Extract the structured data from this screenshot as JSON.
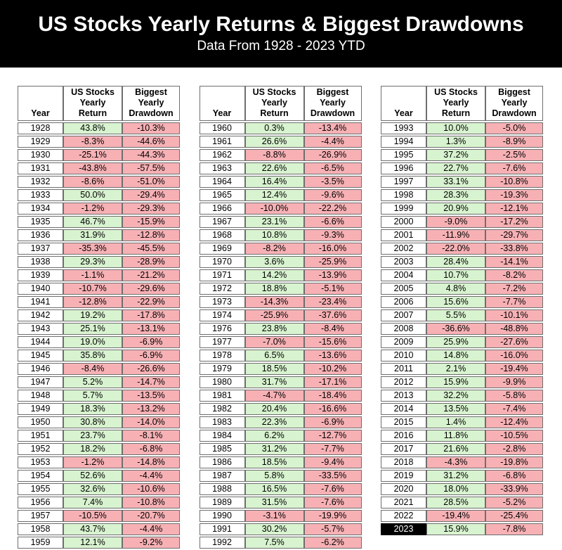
{
  "header": {
    "title": "US Stocks Yearly Returns & Biggest Drawdowns",
    "subtitle": "Data From 1928 - 2023 YTD"
  },
  "colors": {
    "banner_bg": "#000000",
    "banner_text": "#ffffff",
    "positive_cell": "#d8f3cf",
    "negative_cell": "#f7b1b5",
    "highlight_year_bg": "#000000",
    "highlight_year_text": "#ffffff",
    "grid_line": "#6e6e6e"
  },
  "chart_data": {
    "type": "table",
    "title": "US Stocks Yearly Returns & Biggest Drawdowns",
    "subtitle": "Data From 1928 - 2023 YTD",
    "columns": [
      "Year",
      "US Stocks\nYearly\nReturn",
      "Biggest\nYearly\nDrawdown"
    ],
    "highlight_years": [
      "2023"
    ],
    "tables": [
      {
        "rows": [
          [
            "1928",
            "43.8%",
            "-10.3%"
          ],
          [
            "1929",
            "-8.3%",
            "-44.6%"
          ],
          [
            "1930",
            "-25.1%",
            "-44.3%"
          ],
          [
            "1931",
            "-43.8%",
            "-57.5%"
          ],
          [
            "1932",
            "-8.6%",
            "-51.0%"
          ],
          [
            "1933",
            "50.0%",
            "-29.4%"
          ],
          [
            "1934",
            "-1.2%",
            "-29.3%"
          ],
          [
            "1935",
            "46.7%",
            "-15.9%"
          ],
          [
            "1936",
            "31.9%",
            "-12.8%"
          ],
          [
            "1937",
            "-35.3%",
            "-45.5%"
          ],
          [
            "1938",
            "29.3%",
            "-28.9%"
          ],
          [
            "1939",
            "-1.1%",
            "-21.2%"
          ],
          [
            "1940",
            "-10.7%",
            "-29.6%"
          ],
          [
            "1941",
            "-12.8%",
            "-22.9%"
          ],
          [
            "1942",
            "19.2%",
            "-17.8%"
          ],
          [
            "1943",
            "25.1%",
            "-13.1%"
          ],
          [
            "1944",
            "19.0%",
            "-6.9%"
          ],
          [
            "1945",
            "35.8%",
            "-6.9%"
          ],
          [
            "1946",
            "-8.4%",
            "-26.6%"
          ],
          [
            "1947",
            "5.2%",
            "-14.7%"
          ],
          [
            "1948",
            "5.7%",
            "-13.5%"
          ],
          [
            "1949",
            "18.3%",
            "-13.2%"
          ],
          [
            "1950",
            "30.8%",
            "-14.0%"
          ],
          [
            "1951",
            "23.7%",
            "-8.1%"
          ],
          [
            "1952",
            "18.2%",
            "-6.8%"
          ],
          [
            "1953",
            "-1.2%",
            "-14.8%"
          ],
          [
            "1954",
            "52.6%",
            "-4.4%"
          ],
          [
            "1955",
            "32.6%",
            "-10.6%"
          ],
          [
            "1956",
            "7.4%",
            "-10.8%"
          ],
          [
            "1957",
            "-10.5%",
            "-20.7%"
          ],
          [
            "1958",
            "43.7%",
            "-4.4%"
          ],
          [
            "1959",
            "12.1%",
            "-9.2%"
          ]
        ]
      },
      {
        "rows": [
          [
            "1960",
            "0.3%",
            "-13.4%"
          ],
          [
            "1961",
            "26.6%",
            "-4.4%"
          ],
          [
            "1962",
            "-8.8%",
            "-26.9%"
          ],
          [
            "1963",
            "22.6%",
            "-6.5%"
          ],
          [
            "1964",
            "16.4%",
            "-3.5%"
          ],
          [
            "1965",
            "12.4%",
            "-9.6%"
          ],
          [
            "1966",
            "-10.0%",
            "-22.2%"
          ],
          [
            "1967",
            "23.1%",
            "-6.6%"
          ],
          [
            "1968",
            "10.8%",
            "-9.3%"
          ],
          [
            "1969",
            "-8.2%",
            "-16.0%"
          ],
          [
            "1970",
            "3.6%",
            "-25.9%"
          ],
          [
            "1971",
            "14.2%",
            "-13.9%"
          ],
          [
            "1972",
            "18.8%",
            "-5.1%"
          ],
          [
            "1973",
            "-14.3%",
            "-23.4%"
          ],
          [
            "1974",
            "-25.9%",
            "-37.6%"
          ],
          [
            "1976",
            "23.8%",
            "-8.4%"
          ],
          [
            "1977",
            "-7.0%",
            "-15.6%"
          ],
          [
            "1978",
            "6.5%",
            "-13.6%"
          ],
          [
            "1979",
            "18.5%",
            "-10.2%"
          ],
          [
            "1980",
            "31.7%",
            "-17.1%"
          ],
          [
            "1981",
            "-4.7%",
            "-18.4%"
          ],
          [
            "1982",
            "20.4%",
            "-16.6%"
          ],
          [
            "1983",
            "22.3%",
            "-6.9%"
          ],
          [
            "1984",
            "6.2%",
            "-12.7%"
          ],
          [
            "1985",
            "31.2%",
            "-7.7%"
          ],
          [
            "1986",
            "18.5%",
            "-9.4%"
          ],
          [
            "1987",
            "5.8%",
            "-33.5%"
          ],
          [
            "1988",
            "16.5%",
            "-7.6%"
          ],
          [
            "1989",
            "31.5%",
            "-7.6%"
          ],
          [
            "1990",
            "-3.1%",
            "-19.9%"
          ],
          [
            "1991",
            "30.2%",
            "-5.7%"
          ],
          [
            "1992",
            "7.5%",
            "-6.2%"
          ]
        ]
      },
      {
        "rows": [
          [
            "1993",
            "10.0%",
            "-5.0%"
          ],
          [
            "1994",
            "1.3%",
            "-8.9%"
          ],
          [
            "1995",
            "37.2%",
            "-2.5%"
          ],
          [
            "1996",
            "22.7%",
            "-7.6%"
          ],
          [
            "1997",
            "33.1%",
            "-10.8%"
          ],
          [
            "1998",
            "28.3%",
            "-19.3%"
          ],
          [
            "1999",
            "20.9%",
            "-12.1%"
          ],
          [
            "2000",
            "-9.0%",
            "-17.2%"
          ],
          [
            "2001",
            "-11.9%",
            "-29.7%"
          ],
          [
            "2002",
            "-22.0%",
            "-33.8%"
          ],
          [
            "2003",
            "28.4%",
            "-14.1%"
          ],
          [
            "2004",
            "10.7%",
            "-8.2%"
          ],
          [
            "2005",
            "4.8%",
            "-7.2%"
          ],
          [
            "2006",
            "15.6%",
            "-7.7%"
          ],
          [
            "2007",
            "5.5%",
            "-10.1%"
          ],
          [
            "2008",
            "-36.6%",
            "-48.8%"
          ],
          [
            "2009",
            "25.9%",
            "-27.6%"
          ],
          [
            "2010",
            "14.8%",
            "-16.0%"
          ],
          [
            "2011",
            "2.1%",
            "-19.4%"
          ],
          [
            "2012",
            "15.9%",
            "-9.9%"
          ],
          [
            "2013",
            "32.2%",
            "-5.8%"
          ],
          [
            "2014",
            "13.5%",
            "-7.4%"
          ],
          [
            "2015",
            "1.4%",
            "-12.4%"
          ],
          [
            "2016",
            "11.8%",
            "-10.5%"
          ],
          [
            "2017",
            "21.6%",
            "-2.8%"
          ],
          [
            "2018",
            "-4.3%",
            "-19.8%"
          ],
          [
            "2019",
            "31.2%",
            "-6.8%"
          ],
          [
            "2020",
            "18.0%",
            "-33.9%"
          ],
          [
            "2021",
            "28.5%",
            "-5.2%"
          ],
          [
            "2022",
            "-19.4%",
            "-25.4%"
          ],
          [
            "2023",
            "15.9%",
            "-7.8%"
          ]
        ]
      }
    ]
  }
}
